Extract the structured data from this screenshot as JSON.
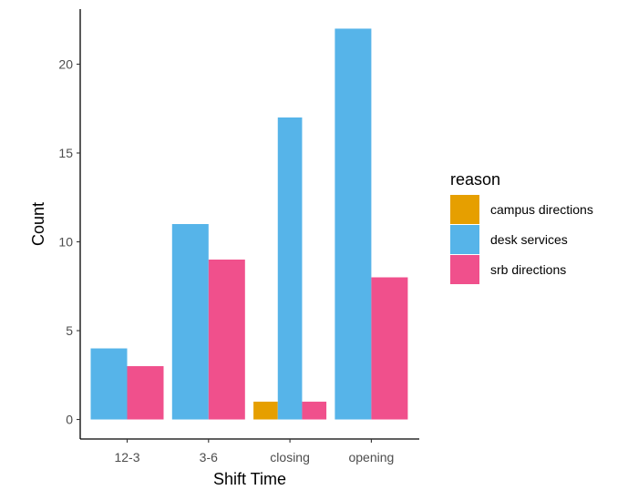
{
  "chart_data": {
    "type": "bar",
    "categories": [
      "12-3",
      "3-6",
      "closing",
      "opening"
    ],
    "series": [
      {
        "name": "campus directions",
        "values": [
          0,
          0,
          1,
          0
        ],
        "color": "#E69F00"
      },
      {
        "name": "desk services",
        "values": [
          4,
          11,
          17,
          22
        ],
        "color": "#56B4E9"
      },
      {
        "name": "srb directions",
        "values": [
          3,
          9,
          1,
          8
        ],
        "color": "#F0508C"
      }
    ],
    "xlabel": "Shift Time",
    "ylabel": "Count",
    "ylim": [
      -1.1,
      23.1
    ],
    "yticks": [
      0,
      5,
      10,
      15,
      20
    ],
    "legend": {
      "title": "reason",
      "position": "right"
    },
    "grid": false
  }
}
